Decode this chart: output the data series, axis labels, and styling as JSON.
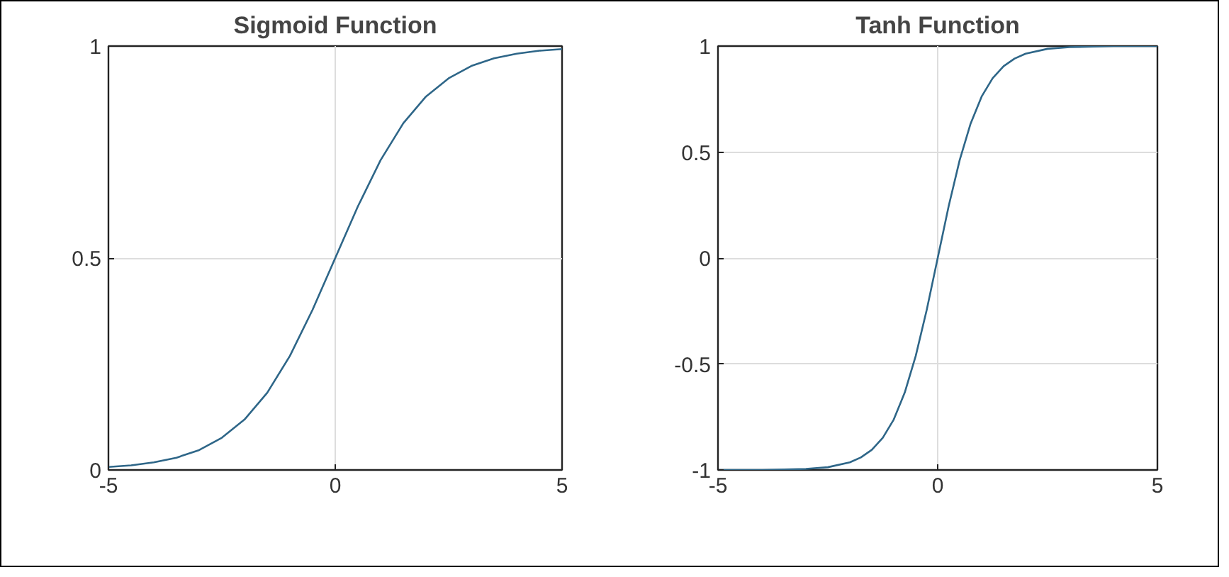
{
  "chart_data": [
    {
      "type": "line",
      "title": "Sigmoid Function",
      "x": [
        -5,
        -4.5,
        -4,
        -3.5,
        -3,
        -2.5,
        -2,
        -1.5,
        -1,
        -0.5,
        0,
        0.5,
        1,
        1.5,
        2,
        2.5,
        3,
        3.5,
        4,
        4.5,
        5
      ],
      "series": [
        {
          "color": "#2e6688",
          "values": [
            0.007,
            0.011,
            0.018,
            0.029,
            0.047,
            0.076,
            0.119,
            0.182,
            0.269,
            0.378,
            0.5,
            0.622,
            0.731,
            0.818,
            0.881,
            0.924,
            0.953,
            0.971,
            0.982,
            0.989,
            0.993
          ]
        }
      ],
      "xlim": [
        -5,
        5
      ],
      "ylim": [
        0,
        1
      ],
      "xticks": [
        -5,
        0,
        5
      ],
      "yticks": [
        0,
        0.5,
        1
      ],
      "grid": true
    },
    {
      "type": "line",
      "title": "Tanh Function",
      "x": [
        -5,
        -4,
        -3,
        -2.5,
        -2,
        -1.75,
        -1.5,
        -1.25,
        -1,
        -0.75,
        -0.5,
        -0.25,
        0,
        0.25,
        0.5,
        0.75,
        1,
        1.25,
        1.5,
        1.75,
        2,
        2.5,
        3,
        4,
        5
      ],
      "series": [
        {
          "color": "#2e6688",
          "values": [
            -1,
            -1,
            -0.995,
            -0.987,
            -0.964,
            -0.941,
            -0.905,
            -0.848,
            -0.762,
            -0.635,
            -0.462,
            -0.245,
            0,
            0.245,
            0.462,
            0.635,
            0.762,
            0.848,
            0.905,
            0.941,
            0.964,
            0.987,
            0.995,
            1,
            1
          ]
        }
      ],
      "xlim": [
        -5,
        5
      ],
      "ylim": [
        -1,
        1
      ],
      "xticks": [
        -5,
        0,
        5
      ],
      "yticks": [
        -1,
        -0.5,
        0,
        0.5,
        1
      ],
      "grid": true
    }
  ]
}
